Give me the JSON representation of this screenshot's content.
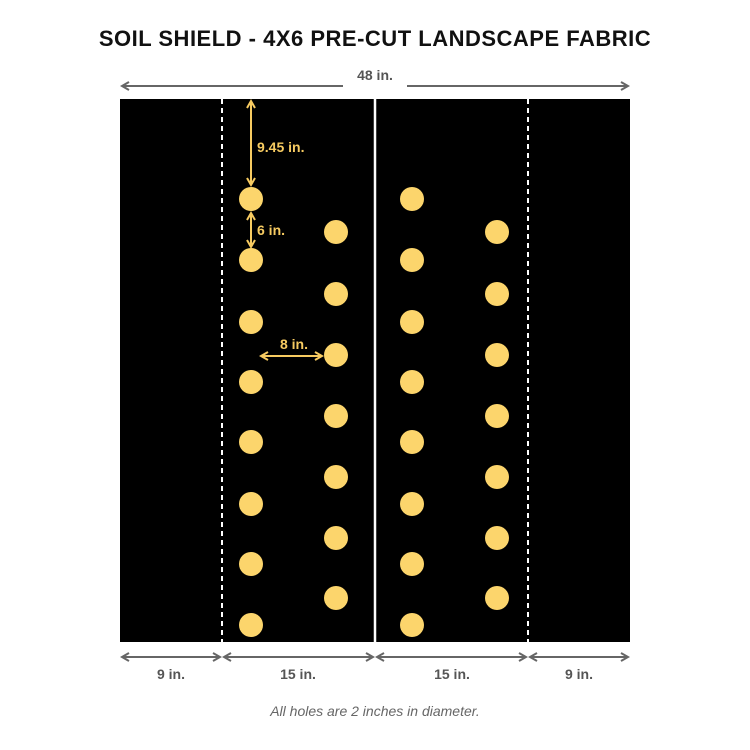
{
  "title": "SOIL SHIELD - 4X6 PRE-CUT LANDSCAPE FABRIC",
  "footnote": "All holes are 2 inches in diameter.",
  "colors": {
    "fabric": "#000000",
    "hole": "#fcd56c",
    "dimension_arrow": "#666666",
    "dimension_text": "#555555",
    "annotation": "#f7cb61",
    "divider": "#ffffff"
  },
  "dimensions": {
    "total_width": "48 in.",
    "segments": [
      "9 in.",
      "15 in.",
      "15 in.",
      "9 in."
    ],
    "top_offset": "9.45 in.",
    "vertical_spacing": "6 in.",
    "horizontal_spacing": "8 in."
  },
  "hole_layout": {
    "columns": 4,
    "holes_per_column": [
      8,
      7,
      8,
      7
    ]
  }
}
